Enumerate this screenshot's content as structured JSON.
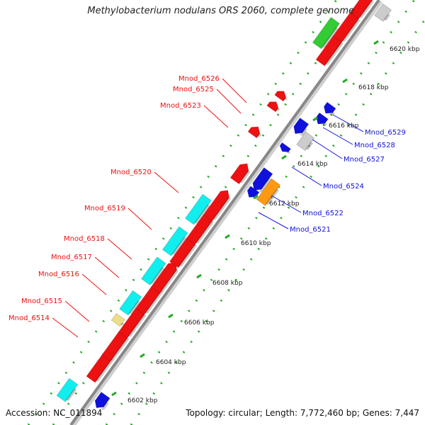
{
  "title": "Methylobacterium nodulans ORS 2060, complete genome",
  "accession": {
    "label": "Accession:",
    "value": "NC_011894"
  },
  "summary": {
    "topology_label": "Topology:",
    "topology": "circular;",
    "length_label": "Length:",
    "length": "7,772,460 bp;",
    "genes_label": "Genes:",
    "genes": "7,447"
  },
  "colors": {
    "forward": "#ee1111",
    "reverse": "#1111dd",
    "cyan": "#11eeee",
    "green": "#33cc33",
    "orange": "#ff9911",
    "gray": "#cccccc",
    "khaki": "#eedd88",
    "axis": "#888888",
    "tick": "#22aa22"
  },
  "kbp_ticks": [
    "6602 kbp",
    "6604 kbp",
    "6606 kbp",
    "6608 kbp",
    "6610 kbp",
    "6612 kbp",
    "6614 kbp",
    "6616 kbp",
    "6618 kbp",
    "6620 kbp"
  ],
  "genes_labeled": {
    "left": [
      "Mnod_6526",
      "Mnod_6525",
      "Mnod_6523",
      "Mnod_6520",
      "Mnod_6519",
      "Mnod_6518",
      "Mnod_6517",
      "Mnod_6516",
      "Mnod_6515",
      "Mnod_6514"
    ],
    "right": [
      "Mnod_6529",
      "Mnod_6528",
      "Mnod_6527",
      "Mnod_6524",
      "Mnod_6522",
      "Mnod_6521"
    ]
  }
}
